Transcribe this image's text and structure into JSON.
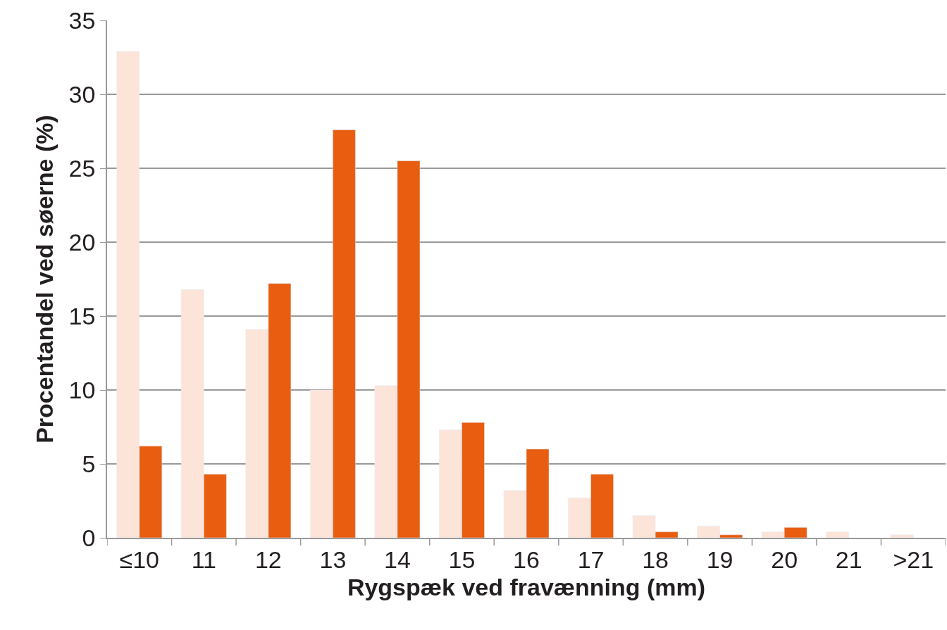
{
  "chart_data": {
    "type": "bar",
    "xlabel": "Rygspæk ved fravænning (mm)",
    "ylabel": "Procentandel ved søerne (%)",
    "categories": [
      "≤10",
      "11",
      "12",
      "13",
      "14",
      "15",
      "16",
      "17",
      "18",
      "19",
      "20",
      "21",
      ">21"
    ],
    "series": [
      {
        "color": "#fce4d9",
        "values": [
          32.9,
          16.8,
          14.1,
          10.0,
          10.3,
          7.3,
          3.2,
          2.7,
          1.5,
          0.8,
          0.4,
          0.4,
          0.2
        ]
      },
      {
        "color": "#e85d10",
        "values": [
          6.2,
          4.3,
          17.2,
          27.6,
          25.5,
          7.8,
          6.0,
          4.3,
          0.4,
          0.2,
          0.7,
          null,
          null
        ]
      }
    ],
    "ylim": [
      0,
      35
    ],
    "yticks": [
      0,
      5,
      10,
      15,
      20,
      25,
      30,
      35
    ],
    "grid": "y",
    "legend": false
  }
}
